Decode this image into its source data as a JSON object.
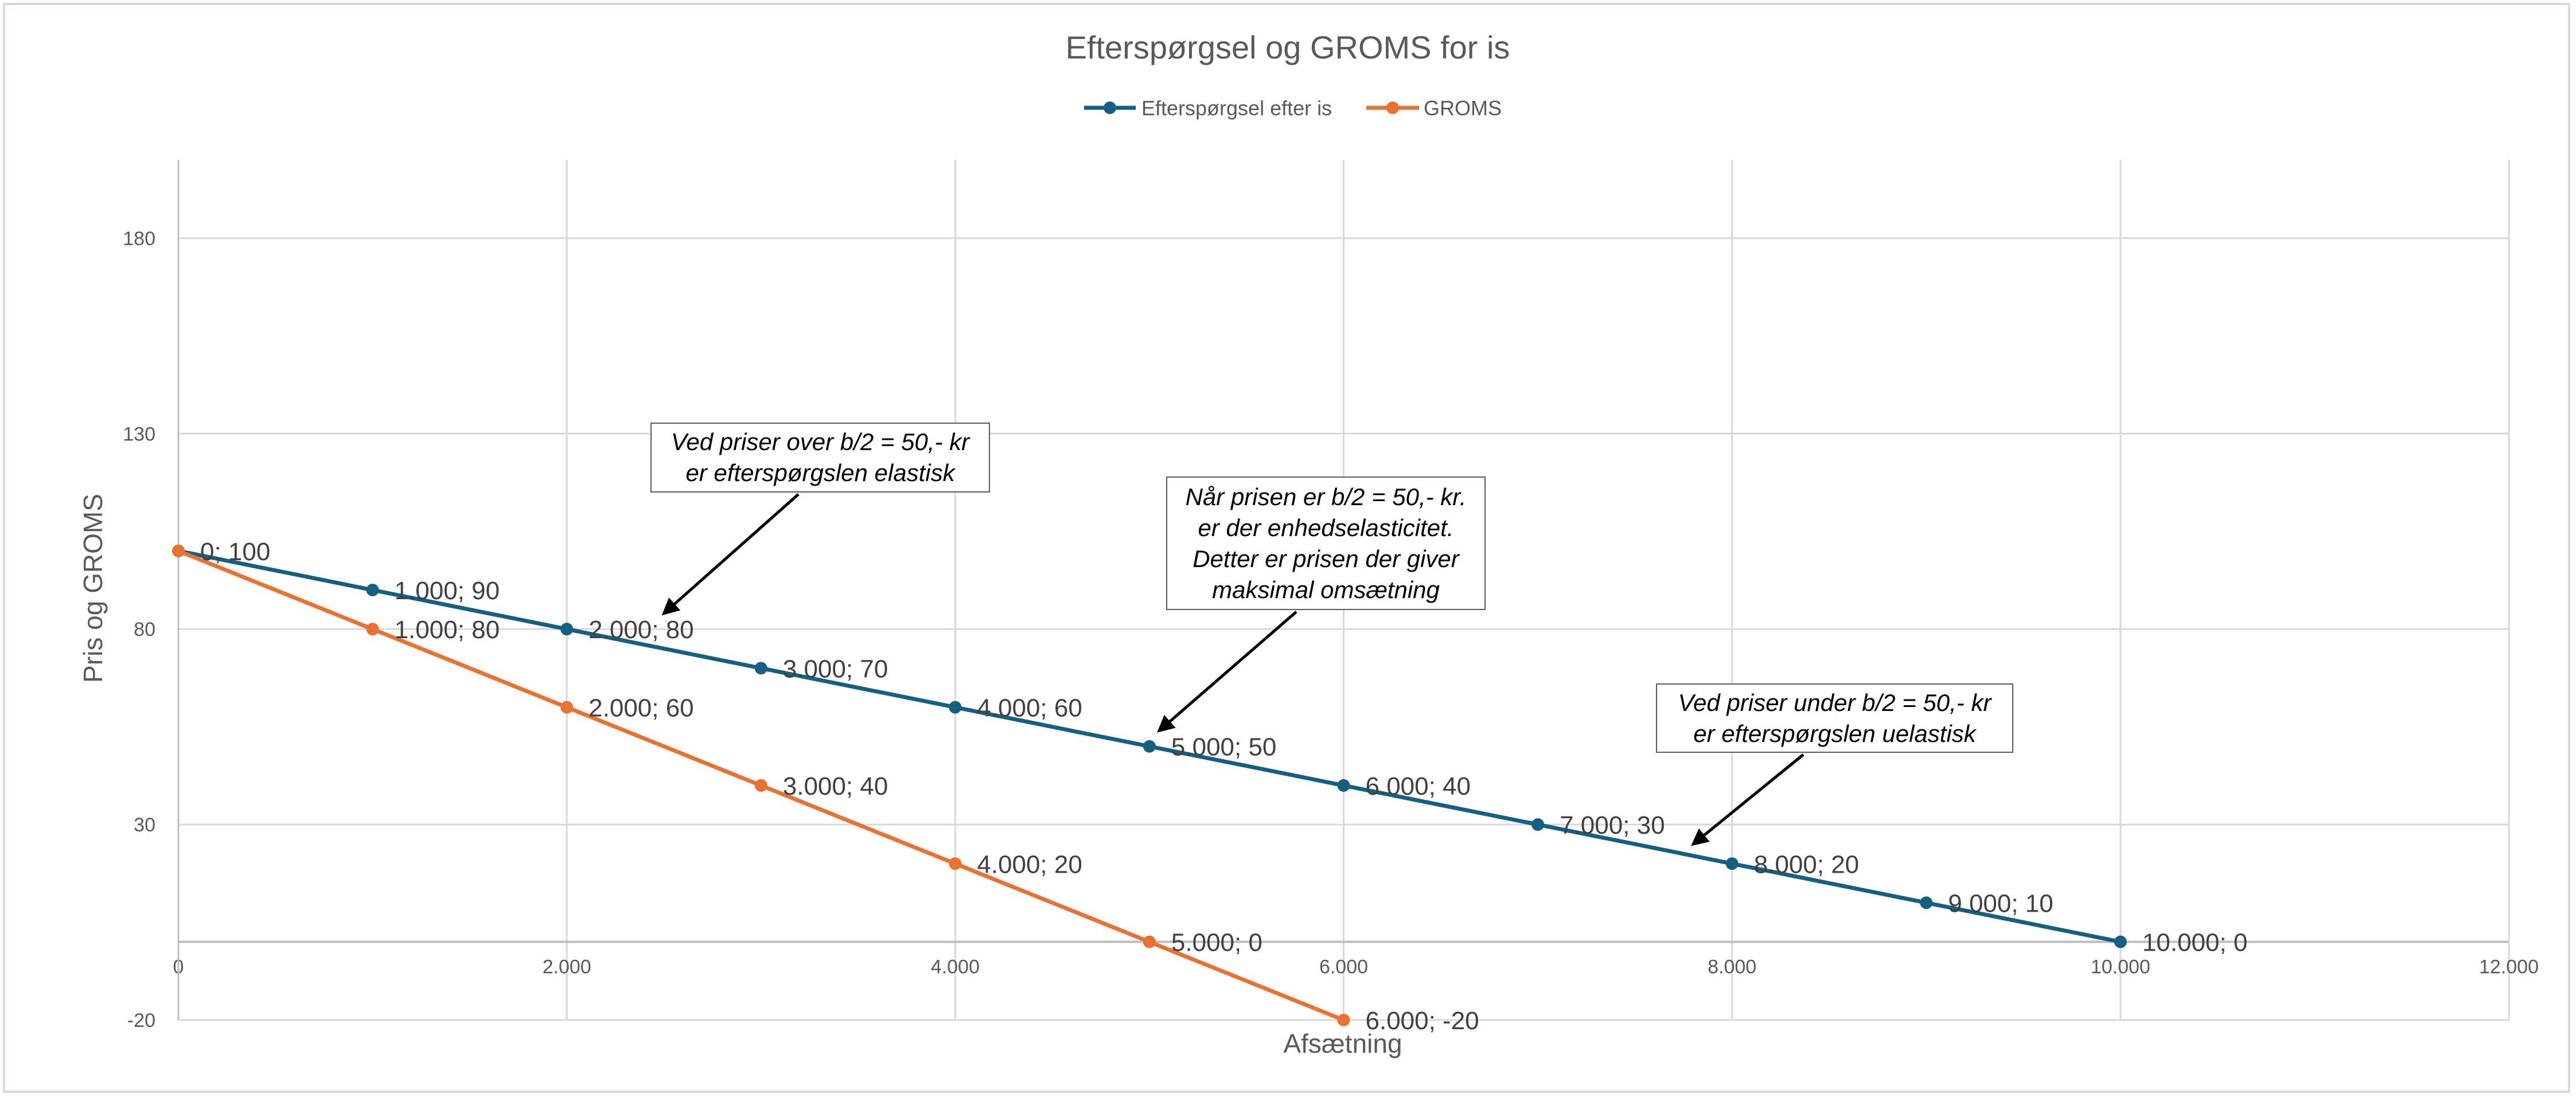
{
  "chart_data": {
    "type": "line",
    "title": "Efterspørgsel og GROMS for is",
    "xlabel": "Afsætning",
    "ylabel": "Pris og GROMS",
    "xlim": [
      0,
      12000
    ],
    "ylim": [
      -20,
      200
    ],
    "x_ticks": [
      0,
      2000,
      4000,
      6000,
      8000,
      10000,
      12000
    ],
    "x_tick_labels": [
      "0",
      "2.000",
      "4.000",
      "6.000",
      "8.000",
      "10.000",
      "12.000"
    ],
    "y_ticks": [
      -20,
      30,
      80,
      130,
      180
    ],
    "y_tick_labels": [
      "-20",
      "30",
      "80",
      "130",
      "180"
    ],
    "grid": true,
    "legend_position": "top-center",
    "series": [
      {
        "name": "Efterspørgsel efter is",
        "color": "#156082",
        "x": [
          0,
          1000,
          2000,
          3000,
          4000,
          5000,
          6000,
          7000,
          8000,
          9000,
          10000
        ],
        "y": [
          100,
          90,
          80,
          70,
          60,
          50,
          40,
          30,
          20,
          10,
          0
        ],
        "labels": [
          "0; 100",
          "1.000; 90",
          "2.000; 80",
          "3.000; 70",
          "4.000; 60",
          "5.000; 50",
          "6.000; 40",
          "7.000; 30",
          "8.000; 20",
          "9.000; 10",
          "10.000; 0"
        ]
      },
      {
        "name": "GROMS",
        "color": "#E97132",
        "x": [
          0,
          1000,
          2000,
          3000,
          4000,
          5000,
          6000
        ],
        "y": [
          100,
          80,
          60,
          40,
          20,
          0,
          -20
        ],
        "labels": [
          "",
          "1.000; 80",
          "2.000; 60",
          "3.000; 40",
          "4.000; 20",
          "5.000; 0",
          "6.000; -20"
        ]
      }
    ],
    "annotations": [
      {
        "text": "Ved priser over b/2 = 50,- kr\ner efterspørgslen elastisk",
        "points_to": [
          2500,
          84
        ]
      },
      {
        "text": "Når prisen er b/2 = 50,- kr.\ner der enhedselasticitet.\nDetter er prisen der giver\nmaksimal omsætning",
        "points_to": [
          5050,
          54
        ]
      },
      {
        "text": "Ved priser under b/2 = 50,- kr\ner efterspørgslen uelastisk",
        "points_to": [
          7800,
          25
        ]
      }
    ]
  }
}
